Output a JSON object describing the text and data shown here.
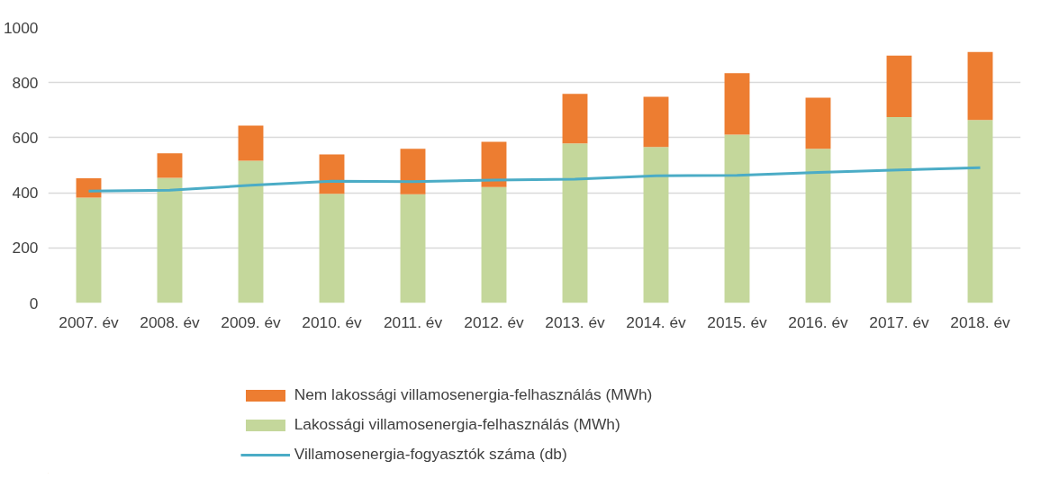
{
  "chart_data": {
    "type": "bar",
    "stacked": true,
    "categories": [
      "2007. év",
      "2008. év",
      "2009. év",
      "2010. év",
      "2011. év",
      "2012. év",
      "2013. év",
      "2014. év",
      "2015. év",
      "2016. év",
      "2017. év",
      "2018. év"
    ],
    "series": [
      {
        "name": "Lakossági villamosenergia-felhasználás (MWh)",
        "color": "#c4d79b",
        "values": [
          382,
          454,
          516,
          396,
          395,
          421,
          579,
          566,
          611,
          560,
          675,
          664
        ]
      },
      {
        "name": "Nem lakossági villamosenergia-felhasználás (MWh)",
        "color": "#ed7d31",
        "values": [
          71,
          89,
          128,
          143,
          165,
          164,
          180,
          182,
          223,
          185,
          223,
          247
        ]
      },
      {
        "name": "Villamosenergia-fogyasztók száma (db)",
        "type": "line",
        "color": "#4bacc6",
        "values": [
          406,
          409,
          427,
          442,
          440,
          446,
          449,
          462,
          463,
          474,
          483,
          491
        ]
      }
    ],
    "ylim": [
      0,
      1000
    ],
    "yticks": [
      0,
      200,
      400,
      600,
      800,
      1000
    ],
    "grid": "y",
    "legend": "bottom"
  }
}
